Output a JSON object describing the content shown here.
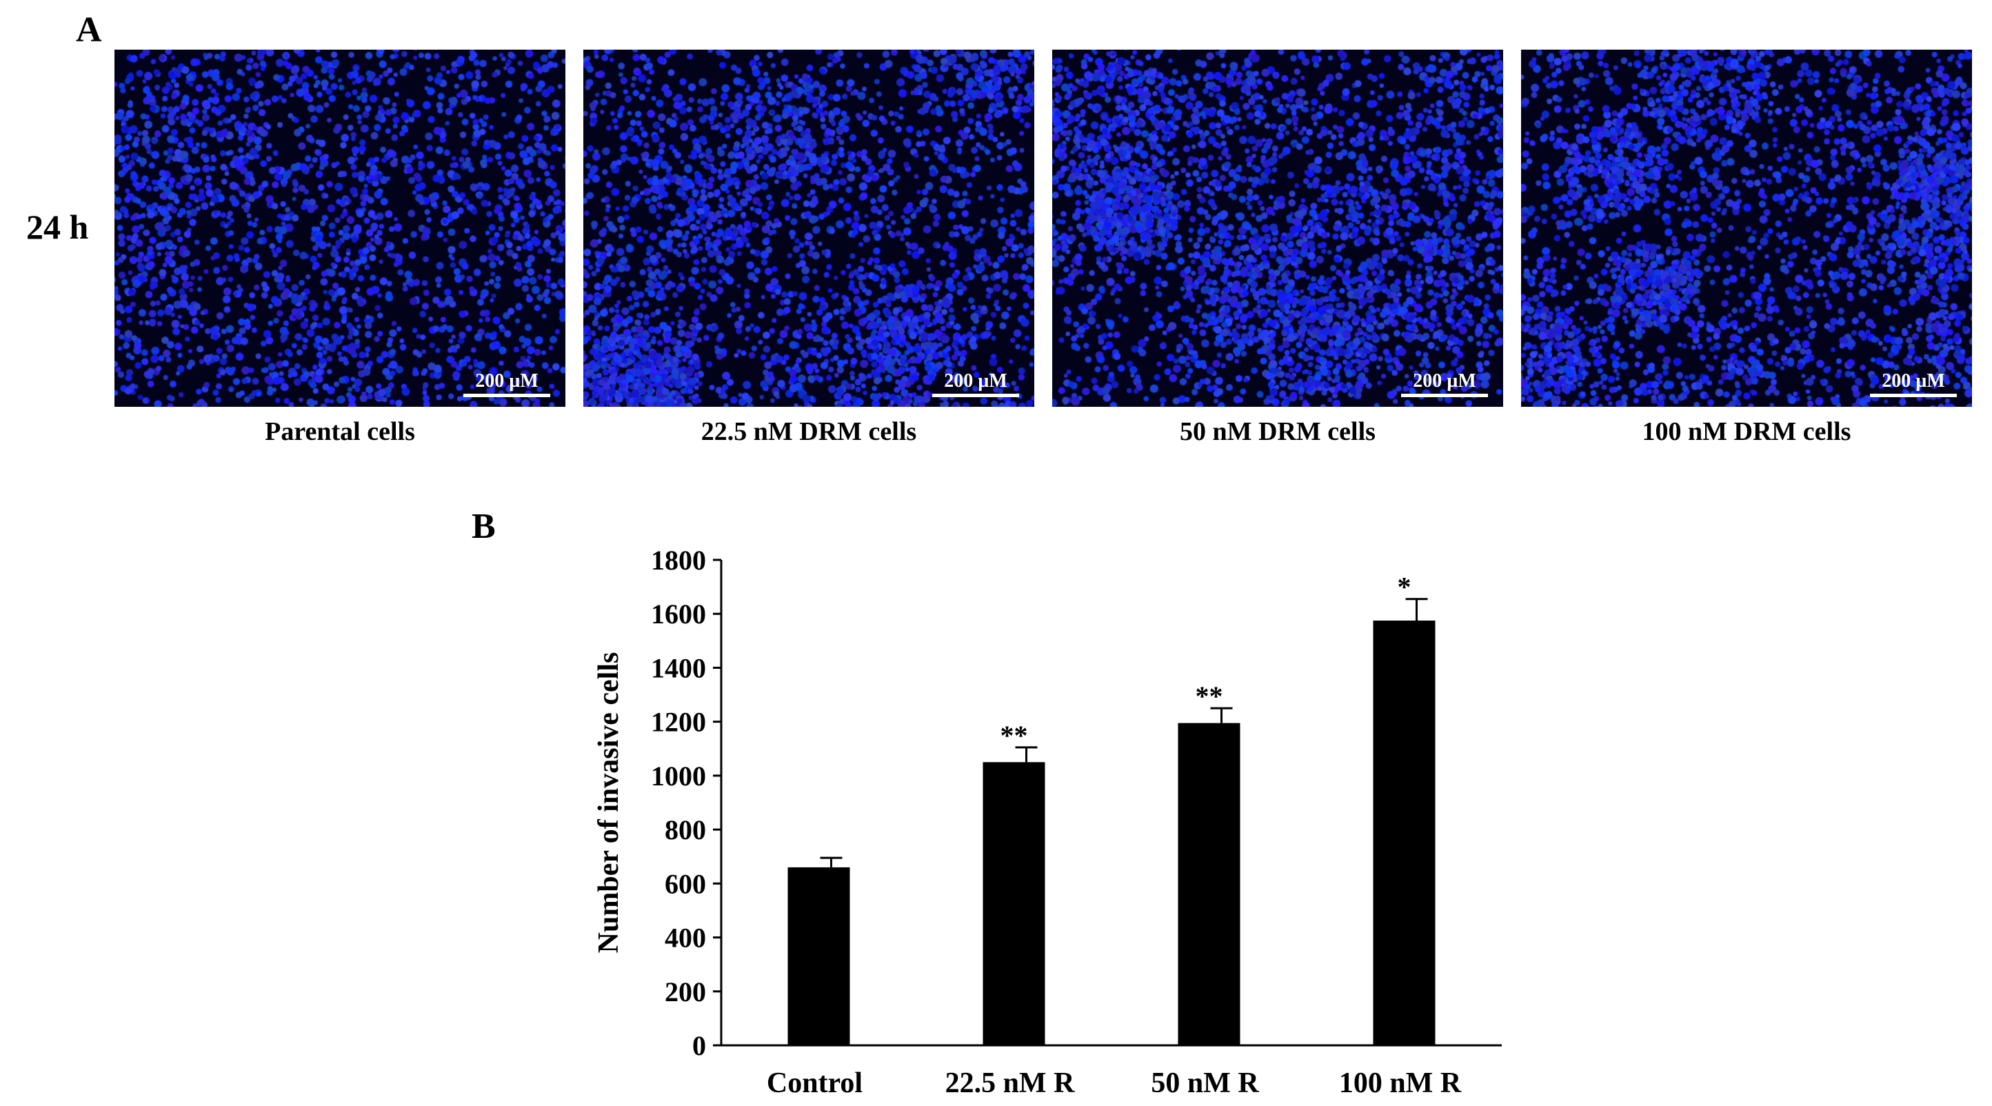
{
  "panel_a": {
    "letter": "A",
    "row_label": "24 h",
    "scale_bar_text": "200 µM",
    "panels": [
      {
        "label": "Parental cells",
        "density": 0.45
      },
      {
        "label": "22.5 nM DRM cells",
        "density": 0.85
      },
      {
        "label": "50 nM DRM cells",
        "density": 0.95
      },
      {
        "label": "100 nM DRM cells",
        "density": 1.0
      }
    ]
  },
  "panel_b": {
    "letter": "B"
  },
  "chart_data": {
    "type": "bar",
    "categories": [
      "Control",
      "22.5 nM R",
      "50 nM R",
      "100 nM R"
    ],
    "values": [
      660,
      1050,
      1195,
      1575
    ],
    "errors": [
      35,
      55,
      55,
      80
    ],
    "significance": [
      "",
      "**",
      "**",
      "*"
    ],
    "ylabel": "Number of invasive cells",
    "ylim": [
      0,
      1800
    ],
    "yticks": [
      0,
      200,
      400,
      600,
      800,
      1000,
      1200,
      1400,
      1600,
      1800
    ],
    "bar_color": "#000000",
    "grid": false,
    "legend": "none"
  }
}
